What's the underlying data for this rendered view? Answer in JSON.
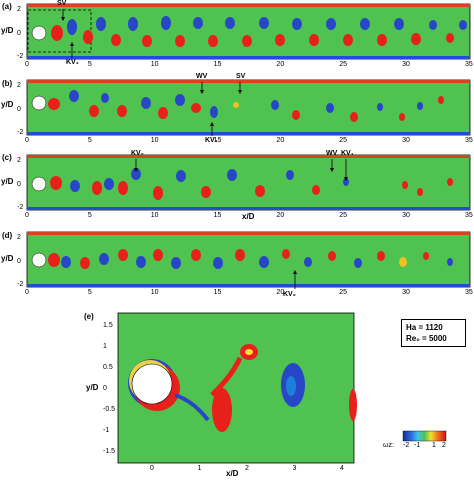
{
  "panels": [
    {
      "label": "(a)",
      "annotations": [
        "SV",
        "KV₁"
      ]
    },
    {
      "label": "(b)",
      "annotations": [
        "WV",
        "SV",
        "KV₁"
      ]
    },
    {
      "label": "(c)",
      "annotations": [
        "KV₂",
        "WV",
        "KV₁"
      ],
      "xlabel": "x/D"
    },
    {
      "label": "(d)",
      "annotations": [
        "KV₂"
      ]
    }
  ],
  "strip_axes": {
    "ylabel": "y/D",
    "xticks": [
      "0",
      "5",
      "10",
      "15",
      "20",
      "25",
      "30",
      "35"
    ],
    "yticks": [
      "2",
      "0",
      "-2"
    ]
  },
  "zoom_panel": {
    "label": "(e)",
    "ylabel": "y/D",
    "xlabel": "x/D",
    "xticks": [
      "0",
      "1",
      "2",
      "3",
      "4"
    ],
    "yticks": [
      "1.5",
      "1",
      "0.5",
      "0",
      "-0.5",
      "-1",
      "-1.5"
    ],
    "params": [
      "Ha = 1120",
      "Re₀ = 5000"
    ],
    "colorbar_label": "ωz:",
    "colorbar_ticks": [
      "-2",
      "-1",
      "1",
      "2"
    ]
  },
  "colors": {
    "background_field": "#4fc24f",
    "positive_vortex": "#e8201c",
    "negative_vortex": "#2746c8",
    "wall_top": "#e04020",
    "wall_bottom": "#2050d0"
  }
}
